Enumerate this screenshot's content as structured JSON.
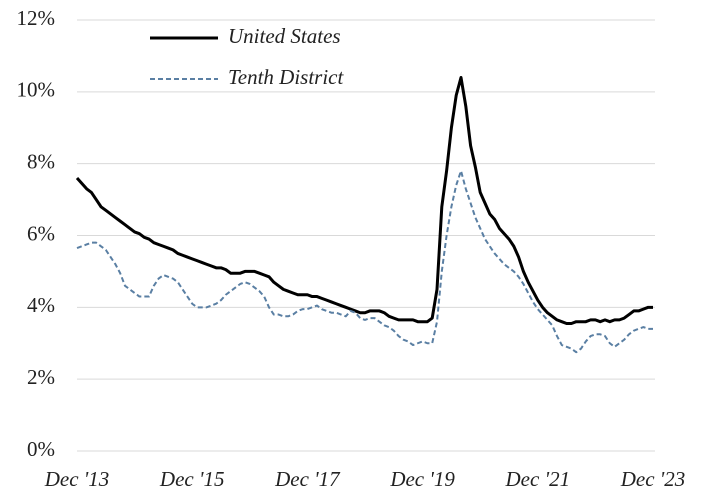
{
  "chart_data": {
    "type": "line",
    "categories": [
      "Dec '13",
      null,
      null,
      null,
      null,
      null,
      null,
      null,
      null,
      null,
      null,
      null,
      null,
      null,
      null,
      null,
      null,
      null,
      null,
      null,
      null,
      null,
      null,
      null,
      "Dec '15",
      null,
      null,
      null,
      null,
      null,
      null,
      null,
      null,
      null,
      null,
      null,
      null,
      null,
      null,
      null,
      null,
      null,
      null,
      null,
      null,
      null,
      null,
      null,
      "Dec '17",
      null,
      null,
      null,
      null,
      null,
      null,
      null,
      null,
      null,
      null,
      null,
      null,
      null,
      null,
      null,
      null,
      null,
      null,
      null,
      null,
      null,
      null,
      null,
      "Dec '19",
      null,
      null,
      null,
      null,
      null,
      null,
      null,
      null,
      null,
      null,
      null,
      null,
      null,
      null,
      null,
      null,
      null,
      null,
      null,
      null,
      null,
      null,
      null,
      "Dec '21",
      null,
      null,
      null,
      null,
      null,
      null,
      null,
      null,
      null,
      null,
      null,
      null,
      null,
      null,
      null,
      null,
      null,
      null,
      null,
      null,
      null,
      null,
      null,
      "Dec '23"
    ],
    "series": [
      {
        "name": "United States",
        "color": "#000000",
        "dash": false,
        "values": [
          7.6,
          7.45,
          7.3,
          7.2,
          7.0,
          6.8,
          6.7,
          6.6,
          6.5,
          6.4,
          6.3,
          6.2,
          6.1,
          6.05,
          5.95,
          5.9,
          5.8,
          5.75,
          5.7,
          5.65,
          5.6,
          5.5,
          5.45,
          5.4,
          5.35,
          5.3,
          5.25,
          5.2,
          5.15,
          5.1,
          5.1,
          5.05,
          4.95,
          4.95,
          4.95,
          5.0,
          5.0,
          5.0,
          4.95,
          4.9,
          4.85,
          4.7,
          4.6,
          4.5,
          4.45,
          4.4,
          4.35,
          4.35,
          4.35,
          4.3,
          4.3,
          4.25,
          4.2,
          4.15,
          4.1,
          4.05,
          4.0,
          3.95,
          3.9,
          3.85,
          3.85,
          3.9,
          3.9,
          3.9,
          3.85,
          3.75,
          3.7,
          3.65,
          3.65,
          3.65,
          3.65,
          3.6,
          3.6,
          3.6,
          3.7,
          4.5,
          6.8,
          7.8,
          9.0,
          9.9,
          10.4,
          9.6,
          8.5,
          7.9,
          7.2,
          6.9,
          6.6,
          6.45,
          6.2,
          6.05,
          5.9,
          5.7,
          5.4,
          5.0,
          4.7,
          4.45,
          4.2,
          4.0,
          3.85,
          3.75,
          3.65,
          3.6,
          3.55,
          3.55,
          3.6,
          3.6,
          3.6,
          3.65,
          3.65,
          3.6,
          3.65,
          3.6,
          3.65,
          3.65,
          3.7,
          3.8,
          3.9,
          3.9,
          3.95,
          4.0,
          4.0
        ]
      },
      {
        "name": "Tenth District",
        "color": "#5a7fa3",
        "dash": true,
        "values": [
          5.65,
          5.7,
          5.75,
          5.8,
          5.8,
          5.7,
          5.6,
          5.4,
          5.2,
          4.95,
          4.6,
          4.5,
          4.4,
          4.3,
          4.3,
          4.3,
          4.6,
          4.8,
          4.9,
          4.85,
          4.8,
          4.7,
          4.5,
          4.3,
          4.1,
          4.0,
          4.0,
          4.0,
          4.05,
          4.1,
          4.2,
          4.35,
          4.45,
          4.55,
          4.65,
          4.7,
          4.65,
          4.55,
          4.45,
          4.3,
          4.0,
          3.8,
          3.8,
          3.75,
          3.75,
          3.8,
          3.9,
          3.95,
          3.95,
          4.0,
          4.05,
          3.95,
          3.9,
          3.85,
          3.85,
          3.8,
          3.75,
          3.9,
          3.85,
          3.7,
          3.65,
          3.7,
          3.7,
          3.6,
          3.5,
          3.45,
          3.35,
          3.2,
          3.1,
          3.05,
          2.95,
          3.0,
          3.05,
          3.0,
          3.0,
          3.6,
          5.0,
          6.0,
          6.8,
          7.4,
          7.8,
          7.3,
          6.9,
          6.5,
          6.2,
          5.9,
          5.7,
          5.5,
          5.35,
          5.2,
          5.1,
          5.0,
          4.85,
          4.65,
          4.4,
          4.15,
          3.95,
          3.8,
          3.65,
          3.5,
          3.2,
          2.95,
          2.9,
          2.85,
          2.75,
          2.85,
          3.05,
          3.2,
          3.25,
          3.25,
          3.2,
          3.0,
          2.9,
          3.0,
          3.1,
          3.25,
          3.35,
          3.4,
          3.45,
          3.4,
          3.4
        ]
      }
    ],
    "ylim": [
      0,
      12
    ],
    "yticks": [
      {
        "value": 0,
        "label": "0%"
      },
      {
        "value": 2,
        "label": "2%"
      },
      {
        "value": 4,
        "label": "4%"
      },
      {
        "value": 6,
        "label": "6%"
      },
      {
        "value": 8,
        "label": "8%"
      },
      {
        "value": 10,
        "label": "10%"
      },
      {
        "value": 12,
        "label": "12%"
      }
    ],
    "grid": true,
    "legend": "top-left"
  }
}
